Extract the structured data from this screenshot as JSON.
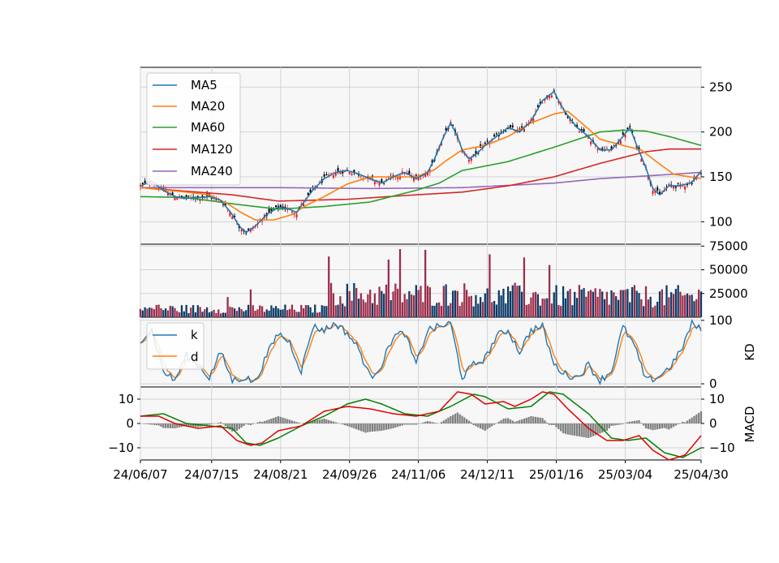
{
  "chart_data": {
    "type": "candlestick",
    "x_tick_labels": [
      "24/06/07",
      "24/07/15",
      "24/08/21",
      "24/09/26",
      "24/11/06",
      "24/12/11",
      "25/01/16",
      "25/03/04",
      "25/04/30"
    ],
    "colors": {
      "ma5": "#1f77b4",
      "ma20": "#ff7f0e",
      "ma60": "#2ca02c",
      "ma120": "#d62728",
      "ma240": "#9467bd",
      "up": "#e31a1c",
      "down": "#000000",
      "vol_up": "#9b2c4a",
      "vol_down": "#0b3a66",
      "k": "#1f77b4",
      "d": "#ff7f0e",
      "macd": "#e00000",
      "signal": "#008000",
      "hist": "#808080",
      "grid": "#d3d3d3",
      "panel_bg": "#f7f7f7"
    },
    "panels": [
      {
        "id": "price",
        "ylim": [
          75,
          272
        ],
        "yticks": [
          100,
          150,
          200,
          250
        ],
        "legend": [
          "MA5",
          "MA20",
          "MA60",
          "MA120",
          "MA240"
        ],
        "legend_position": "upper-left",
        "close_path": [
          [
            0,
            140
          ],
          [
            5,
            145
          ],
          [
            10,
            135
          ],
          [
            15,
            128
          ],
          [
            20,
            126
          ],
          [
            25,
            127
          ],
          [
            30,
            128
          ],
          [
            35,
            124
          ],
          [
            40,
            108
          ],
          [
            43,
            95
          ],
          [
            46,
            88
          ],
          [
            50,
            95
          ],
          [
            55,
            108
          ],
          [
            60,
            116
          ],
          [
            65,
            114
          ],
          [
            68,
            110
          ],
          [
            70,
            118
          ],
          [
            75,
            135
          ],
          [
            80,
            148
          ],
          [
            85,
            155
          ],
          [
            90,
            157
          ],
          [
            95,
            153
          ],
          [
            100,
            148
          ],
          [
            105,
            143
          ],
          [
            110,
            150
          ],
          [
            115,
            155
          ],
          [
            120,
            148
          ],
          [
            125,
            155
          ],
          [
            128,
            170
          ],
          [
            132,
            195
          ],
          [
            135,
            210
          ],
          [
            138,
            195
          ],
          [
            140,
            180
          ],
          [
            143,
            170
          ],
          [
            146,
            175
          ],
          [
            150,
            185
          ],
          [
            155,
            195
          ],
          [
            160,
            205
          ],
          [
            165,
            200
          ],
          [
            170,
            212
          ],
          [
            175,
            235
          ],
          [
            180,
            245
          ],
          [
            183,
            230
          ],
          [
            186,
            218
          ],
          [
            190,
            205
          ],
          [
            195,
            195
          ],
          [
            200,
            180
          ],
          [
            205,
            180
          ],
          [
            210,
            195
          ],
          [
            213,
            205
          ],
          [
            216,
            185
          ],
          [
            220,
            160
          ],
          [
            223,
            137
          ],
          [
            226,
            130
          ],
          [
            230,
            140
          ],
          [
            235,
            140
          ],
          [
            240,
            144
          ],
          [
            244,
            156
          ]
        ],
        "ma20_path": [
          [
            0,
            138
          ],
          [
            20,
            133
          ],
          [
            30,
            130
          ],
          [
            38,
            120
          ],
          [
            44,
            110
          ],
          [
            50,
            102
          ],
          [
            58,
            102
          ],
          [
            66,
            108
          ],
          [
            72,
            118
          ],
          [
            80,
            128
          ],
          [
            90,
            142
          ],
          [
            100,
            150
          ],
          [
            110,
            150
          ],
          [
            120,
            150
          ],
          [
            128,
            158
          ],
          [
            133,
            168
          ],
          [
            140,
            180
          ],
          [
            150,
            185
          ],
          [
            160,
            195
          ],
          [
            170,
            210
          ],
          [
            180,
            220
          ],
          [
            186,
            223
          ],
          [
            192,
            210
          ],
          [
            200,
            192
          ],
          [
            210,
            185
          ],
          [
            218,
            180
          ],
          [
            224,
            168
          ],
          [
            232,
            153
          ],
          [
            244,
            148
          ]
        ],
        "ma60_path": [
          [
            0,
            128
          ],
          [
            20,
            127
          ],
          [
            40,
            120
          ],
          [
            60,
            114
          ],
          [
            80,
            117
          ],
          [
            100,
            122
          ],
          [
            120,
            135
          ],
          [
            130,
            143
          ],
          [
            140,
            157
          ],
          [
            160,
            167
          ],
          [
            180,
            183
          ],
          [
            200,
            200
          ],
          [
            210,
            202
          ],
          [
            220,
            201
          ],
          [
            230,
            195
          ],
          [
            244,
            185
          ]
        ],
        "ma120_path": [
          [
            0,
            138
          ],
          [
            40,
            130
          ],
          [
            60,
            123
          ],
          [
            90,
            125
          ],
          [
            120,
            130
          ],
          [
            140,
            133
          ],
          [
            160,
            140
          ],
          [
            180,
            150
          ],
          [
            200,
            165
          ],
          [
            220,
            178
          ],
          [
            230,
            181
          ],
          [
            244,
            181
          ]
        ],
        "ma240_path": [
          [
            0,
            138
          ],
          [
            60,
            138
          ],
          [
            100,
            137
          ],
          [
            140,
            138
          ],
          [
            180,
            143
          ],
          [
            200,
            148
          ],
          [
            220,
            151
          ],
          [
            244,
            155
          ]
        ]
      },
      {
        "id": "volume",
        "ylim": [
          0,
          77000
        ],
        "yticks": [
          25000,
          50000,
          75000
        ],
        "tick_labels": [
          "25000",
          "50000",
          "75000"
        ]
      },
      {
        "id": "kd",
        "ylabel": "KD",
        "ylim": [
          -5,
          105
        ],
        "yticks": [
          0,
          100
        ],
        "legend": [
          "k",
          "d"
        ],
        "legend_position": "upper-left",
        "swing_points": [
          [
            0,
            70
          ],
          [
            5,
            85
          ],
          [
            10,
            20
          ],
          [
            15,
            5
          ],
          [
            20,
            45
          ],
          [
            25,
            30
          ],
          [
            30,
            10
          ],
          [
            35,
            50
          ],
          [
            40,
            5
          ],
          [
            45,
            10
          ],
          [
            50,
            3
          ],
          [
            55,
            45
          ],
          [
            60,
            80
          ],
          [
            65,
            65
          ],
          [
            70,
            20
          ],
          [
            75,
            90
          ],
          [
            80,
            85
          ],
          [
            85,
            95
          ],
          [
            90,
            80
          ],
          [
            95,
            55
          ],
          [
            100,
            10
          ],
          [
            105,
            30
          ],
          [
            110,
            75
          ],
          [
            115,
            80
          ],
          [
            120,
            30
          ],
          [
            125,
            85
          ],
          [
            130,
            90
          ],
          [
            135,
            95
          ],
          [
            140,
            10
          ],
          [
            145,
            30
          ],
          [
            150,
            40
          ],
          [
            155,
            75
          ],
          [
            160,
            85
          ],
          [
            165,
            50
          ],
          [
            170,
            85
          ],
          [
            175,
            90
          ],
          [
            180,
            30
          ],
          [
            185,
            15
          ],
          [
            190,
            10
          ],
          [
            195,
            30
          ],
          [
            200,
            5
          ],
          [
            205,
            20
          ],
          [
            210,
            90
          ],
          [
            215,
            60
          ],
          [
            220,
            5
          ],
          [
            225,
            10
          ],
          [
            230,
            25
          ],
          [
            235,
            50
          ],
          [
            240,
            95
          ],
          [
            244,
            85
          ]
        ]
      },
      {
        "id": "macd",
        "ylabel": "MACD",
        "ylim": [
          -15,
          15
        ],
        "yticks": [
          -10,
          0,
          10
        ],
        "tick_labels": [
          "−10",
          "0",
          "10"
        ],
        "macd_path": [
          [
            0,
            3
          ],
          [
            8,
            3
          ],
          [
            15,
            0
          ],
          [
            25,
            -2
          ],
          [
            35,
            -1
          ],
          [
            42,
            -7
          ],
          [
            48,
            -9
          ],
          [
            53,
            -8
          ],
          [
            60,
            -3
          ],
          [
            70,
            -1
          ],
          [
            80,
            5
          ],
          [
            90,
            7
          ],
          [
            100,
            6
          ],
          [
            110,
            4
          ],
          [
            120,
            3
          ],
          [
            130,
            5
          ],
          [
            138,
            13
          ],
          [
            144,
            12
          ],
          [
            150,
            8
          ],
          [
            158,
            9
          ],
          [
            163,
            7
          ],
          [
            170,
            10
          ],
          [
            175,
            13
          ],
          [
            180,
            12
          ],
          [
            186,
            6
          ],
          [
            195,
            -2
          ],
          [
            203,
            -7
          ],
          [
            210,
            -7
          ],
          [
            217,
            -5
          ],
          [
            223,
            -11
          ],
          [
            230,
            -15
          ],
          [
            237,
            -13
          ],
          [
            244,
            -5
          ]
        ],
        "signal_path": [
          [
            0,
            3
          ],
          [
            10,
            4
          ],
          [
            20,
            0
          ],
          [
            30,
            -1
          ],
          [
            40,
            -2
          ],
          [
            46,
            -8
          ],
          [
            52,
            -9
          ],
          [
            60,
            -6
          ],
          [
            70,
            -1
          ],
          [
            80,
            3
          ],
          [
            90,
            8
          ],
          [
            98,
            10
          ],
          [
            105,
            8
          ],
          [
            115,
            4
          ],
          [
            125,
            3
          ],
          [
            135,
            7
          ],
          [
            145,
            12
          ],
          [
            150,
            11
          ],
          [
            160,
            6
          ],
          [
            170,
            7
          ],
          [
            178,
            13
          ],
          [
            184,
            12
          ],
          [
            195,
            4
          ],
          [
            205,
            -6
          ],
          [
            212,
            -7
          ],
          [
            220,
            -6
          ],
          [
            228,
            -12
          ],
          [
            236,
            -14
          ],
          [
            244,
            -10
          ]
        ]
      }
    ],
    "n_bars": 245
  }
}
